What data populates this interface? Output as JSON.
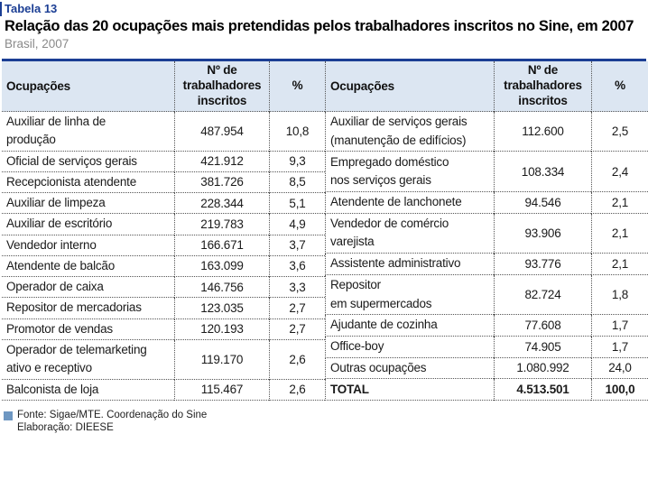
{
  "page": {
    "table_label": "Tabela 13",
    "title": "Relação das 20 ocupações mais pretendidas pelos trabalhadores inscritos no Sine, em 2007",
    "subtitle": "Brasil, 2007"
  },
  "colors": {
    "accent_blue": "#1B3E94",
    "header_bg": "#DCE6F2",
    "footer_square_blue": "#6E97C2",
    "subtitle_gray": "#8A8A8A"
  },
  "table": {
    "columns": {
      "occupation": "Ocupações",
      "workers": "Nº de\ntrabalhadores\ninscritos",
      "pct": "%"
    },
    "left_rows": [
      {
        "occupation": "Auxiliar de linha de\nprodução",
        "workers": "487.954",
        "pct": "10,8"
      },
      {
        "occupation": "Oficial de serviços gerais",
        "workers": "421.912",
        "pct": "9,3"
      },
      {
        "occupation": "Recepcionista atendente",
        "workers": "381.726",
        "pct": "8,5"
      },
      {
        "occupation": "Auxiliar de limpeza",
        "workers": "228.344",
        "pct": "5,1"
      },
      {
        "occupation": "Auxiliar de escritório",
        "workers": "219.783",
        "pct": "4,9"
      },
      {
        "occupation": "Vendedor interno",
        "workers": "166.671",
        "pct": "3,7"
      },
      {
        "occupation": "Atendente de balcão",
        "workers": "163.099",
        "pct": "3,6"
      },
      {
        "occupation": "Operador de caixa",
        "workers": "146.756",
        "pct": "3,3"
      },
      {
        "occupation": "Repositor de mercadorias",
        "workers": "123.035",
        "pct": "2,7"
      },
      {
        "occupation": "Promotor de vendas",
        "workers": "120.193",
        "pct": "2,7"
      },
      {
        "occupation": "Operador de telemarketing\nativo e receptivo",
        "workers": "119.170",
        "pct": "2,6"
      },
      {
        "occupation": "Balconista de loja",
        "workers": "115.467",
        "pct": "2,6"
      }
    ],
    "right_rows": [
      {
        "occupation": "Auxiliar de serviços gerais\n(manutenção de edifícios)",
        "workers": "112.600",
        "pct": "2,5"
      },
      {
        "occupation": "Empregado doméstico\nnos serviços gerais",
        "workers": "108.334",
        "pct": "2,4"
      },
      {
        "occupation": "Atendente de lanchonete",
        "workers": "94.546",
        "pct": "2,1"
      },
      {
        "occupation": "Vendedor de comércio\nvarejista",
        "workers": "93.906",
        "pct": "2,1"
      },
      {
        "occupation": "Assistente administrativo",
        "workers": "93.776",
        "pct": "2,1"
      },
      {
        "occupation": "Repositor\nem supermercados",
        "workers": "82.724",
        "pct": "1,8"
      },
      {
        "occupation": "Ajudante de cozinha",
        "workers": "77.608",
        "pct": "1,7"
      },
      {
        "occupation": "Office-boy",
        "workers": "74.905",
        "pct": "1,7"
      },
      {
        "occupation": "Outras ocupações",
        "workers": "1.080.992",
        "pct": "24,0"
      },
      {
        "occupation": "TOTAL",
        "workers": "4.513.501",
        "pct": "100,0",
        "bold": true
      }
    ]
  },
  "footer": {
    "source": "Fonte: Sigae/MTE. Coordenação do Sine",
    "elaboration": "Elaboração: DIEESE"
  }
}
